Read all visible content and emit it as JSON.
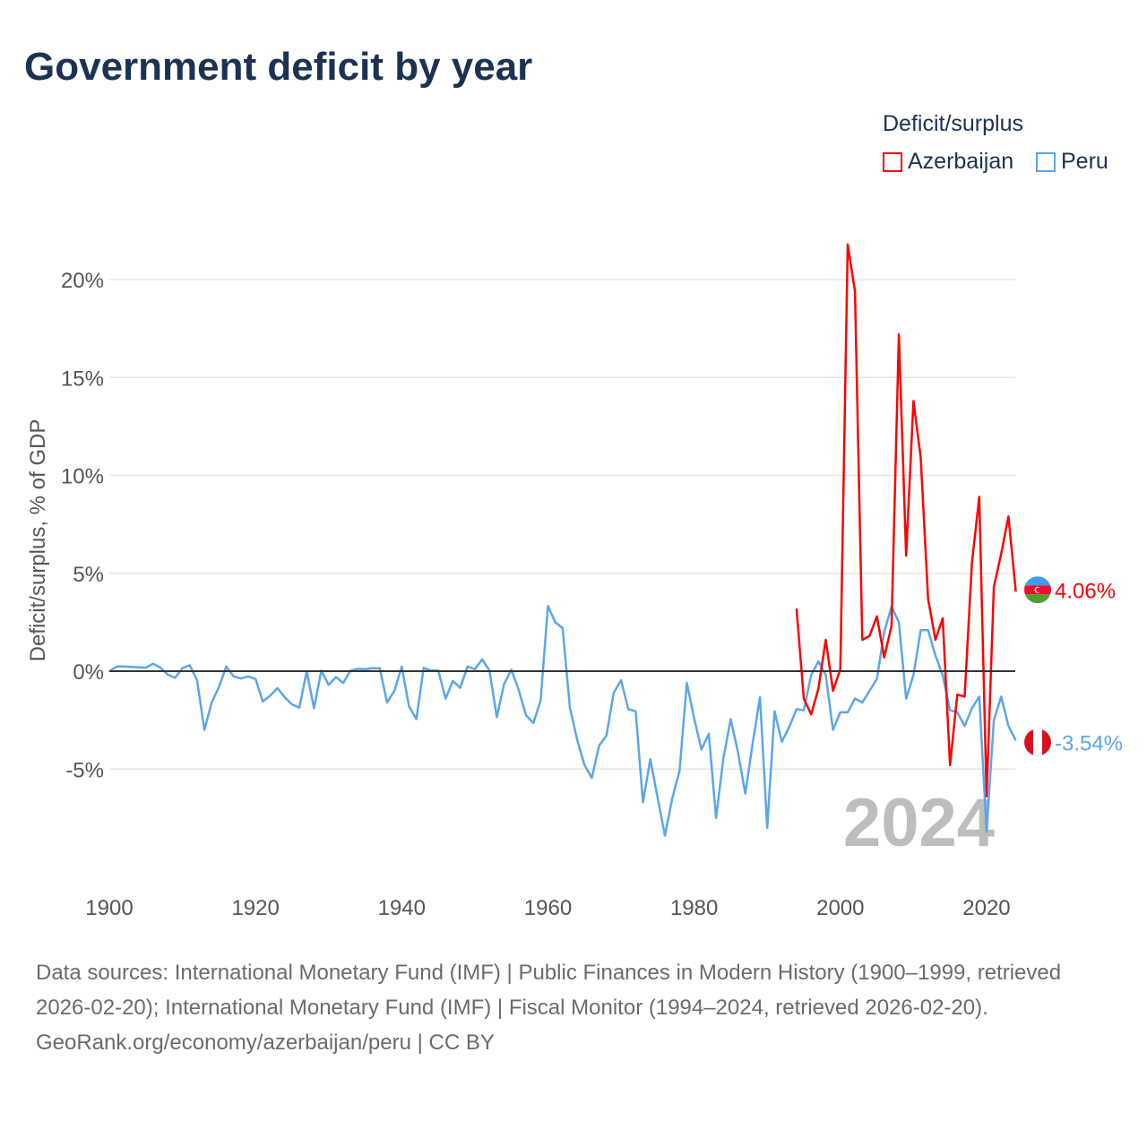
{
  "title": "Government deficit by year",
  "legend": {
    "title": "Deficit/surplus",
    "items": [
      {
        "label": "Azerbaijan",
        "color": "#ff0000"
      },
      {
        "label": "Peru",
        "color": "#5ba6ea"
      }
    ]
  },
  "chart_data": {
    "type": "line",
    "title": "Government deficit by year",
    "xlabel": "",
    "ylabel": "Deficit/surplus, % of GDP",
    "xlim": [
      1900,
      2024
    ],
    "ylim": [
      -10,
      22
    ],
    "x_ticks": [
      "1900",
      "1920",
      "1940",
      "1960",
      "1980",
      "2000",
      "2020"
    ],
    "y_ticks": [
      {
        "value": 20,
        "label": "20%"
      },
      {
        "value": 15,
        "label": "15%"
      },
      {
        "value": 10,
        "label": "10%"
      },
      {
        "value": 5,
        "label": "5%"
      },
      {
        "value": 0,
        "label": "0%"
      },
      {
        "value": -5,
        "label": "-5%"
      }
    ],
    "grid": true,
    "year_watermark": "2024",
    "series": [
      {
        "name": "Azerbaijan",
        "color": "#ff0000",
        "end_label": "4.06%",
        "start_year": 1994,
        "values": [
          3.2,
          -1.4,
          -2.2,
          -0.9,
          1.6,
          -1.0,
          0.1,
          21.8,
          19.4,
          1.6,
          1.8,
          2.8,
          0.7,
          2.3,
          17.2,
          5.9,
          13.8,
          10.9,
          3.7,
          1.6,
          2.7,
          -4.8,
          -1.2,
          -1.3,
          5.5,
          8.9,
          -6.4,
          4.3,
          6.0,
          7.9,
          4.06
        ]
      },
      {
        "name": "Peru",
        "color": "#5ba6ea",
        "end_label": "-3.54%",
        "start_year": 1900,
        "values": [
          0,
          0.24,
          0.24,
          0.22,
          0.2,
          0.18,
          0.38,
          0.18,
          -0.18,
          -0.34,
          0.15,
          0.3,
          -0.46,
          -3.0,
          -1.6,
          -0.8,
          0.24,
          -0.27,
          -0.37,
          -0.27,
          -0.4,
          -1.55,
          -1.25,
          -0.87,
          -1.33,
          -1.7,
          -1.86,
          0,
          -1.9,
          0.03,
          -0.7,
          -0.3,
          -0.6,
          0.03,
          0.12,
          0.1,
          0.15,
          0.15,
          -1.6,
          -1.0,
          0.23,
          -1.8,
          -2.45,
          0.17,
          0.03,
          0.03,
          -1.4,
          -0.5,
          -0.85,
          0.24,
          0.1,
          0.6,
          0.03,
          -2.35,
          -0.67,
          0.08,
          -0.95,
          -2.25,
          -2.65,
          -1.5,
          3.33,
          2.5,
          2.2,
          -1.86,
          -3.5,
          -4.8,
          -5.45,
          -3.8,
          -3.3,
          -1.1,
          -0.46,
          -1.94,
          -2.05,
          -6.7,
          -4.5,
          -6.45,
          -8.4,
          -6.5,
          -5.1,
          -0.6,
          -2.4,
          -4.0,
          -3.2,
          -7.5,
          -4.45,
          -2.45,
          -4.15,
          -6.25,
          -3.7,
          -1.33,
          -8.0,
          -2.05,
          -3.6,
          -2.85,
          -1.94,
          -2.0,
          -0.2,
          0.5,
          -0.2,
          -3.0,
          -2.1,
          -2.1,
          -1.4,
          -1.6,
          -1.0,
          -0.4,
          2.0,
          3.3,
          2.5,
          -1.4,
          -0.2,
          2.1,
          2.1,
          0.8,
          -0.2,
          -2.0,
          -2.1,
          -2.8,
          -1.9,
          -1.3,
          -8.2,
          -2.5,
          -1.3,
          -2.8,
          -3.54
        ]
      }
    ]
  },
  "footer": {
    "sources": "Data sources: International Monetary Fund (IMF) | Public Finances in Modern History (1900–1999, retrieved 2026-02-20); International Monetary Fund (IMF) | Fiscal Monitor (1994–2024, retrieved 2026-02-20).",
    "credit": "GeoRank.org/economy/azerbaijan/peru | CC BY"
  }
}
